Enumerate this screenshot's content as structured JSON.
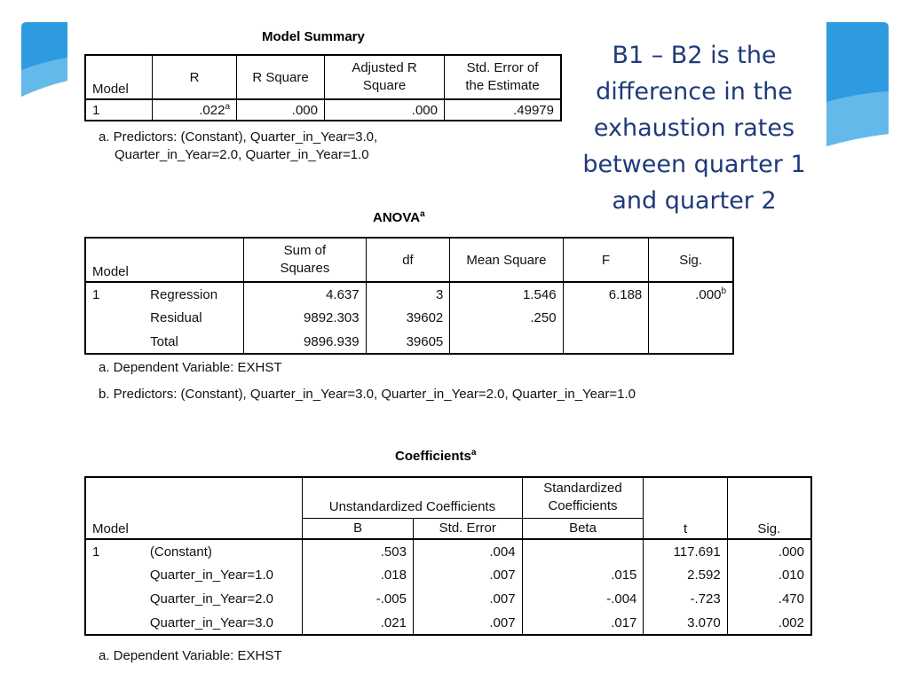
{
  "callout": {
    "lines": [
      "B1 – B2 is the",
      "difference in the",
      "exhaustion rates",
      "between quarter 1",
      "and quarter 2"
    ],
    "color": "#1f3a7a"
  },
  "accent_color": "#2e9be0",
  "model_summary": {
    "title": "Model Summary",
    "headers": {
      "model": "Model",
      "r": "R",
      "r_square": "R Square",
      "adj_r_square": [
        "Adjusted R",
        "Square"
      ],
      "std_error": [
        "Std. Error of",
        "the Estimate"
      ]
    },
    "row": {
      "model": "1",
      "r": ".022",
      "r_sup": "a",
      "r_square": ".000",
      "adj_r_square": ".000",
      "std_error": ".49979"
    },
    "footnote": [
      "a. Predictors: (Constant), Quarter_in_Year=3.0,",
      "Quarter_in_Year=2.0, Quarter_in_Year=1.0"
    ]
  },
  "anova": {
    "title": "ANOVA",
    "title_sup": "a",
    "headers": {
      "model": "Model",
      "ss": [
        "Sum of",
        "Squares"
      ],
      "df": "df",
      "ms": "Mean Square",
      "f": "F",
      "sig": "Sig."
    },
    "model_num": "1",
    "rows": [
      {
        "label": "Regression",
        "ss": "4.637",
        "df": "3",
        "ms": "1.546",
        "f": "6.188",
        "sig": ".000",
        "sig_sup": "b"
      },
      {
        "label": "Residual",
        "ss": "9892.303",
        "df": "39602",
        "ms": ".250",
        "f": "",
        "sig": ""
      },
      {
        "label": "Total",
        "ss": "9896.939",
        "df": "39605",
        "ms": "",
        "f": "",
        "sig": ""
      }
    ],
    "footnotes": [
      "a. Dependent Variable: EXHST",
      "b. Predictors: (Constant), Quarter_in_Year=3.0, Quarter_in_Year=2.0, Quarter_in_Year=1.0"
    ]
  },
  "coefficients": {
    "title": "Coefficients",
    "title_sup": "a",
    "headers": {
      "model": "Model",
      "unstd": "Unstandardized Coefficients",
      "std": [
        "Standardized",
        "Coefficients"
      ],
      "b": "B",
      "se": "Std. Error",
      "beta": "Beta",
      "t": "t",
      "sig": "Sig."
    },
    "model_num": "1",
    "rows": [
      {
        "label": "(Constant)",
        "b": ".503",
        "se": ".004",
        "beta": "",
        "t": "117.691",
        "sig": ".000"
      },
      {
        "label": "Quarter_in_Year=1.0",
        "b": ".018",
        "se": ".007",
        "beta": ".015",
        "t": "2.592",
        "sig": ".010"
      },
      {
        "label": "Quarter_in_Year=2.0",
        "b": "-.005",
        "se": ".007",
        "beta": "-.004",
        "t": "-.723",
        "sig": ".470"
      },
      {
        "label": "Quarter_in_Year=3.0",
        "b": ".021",
        "se": ".007",
        "beta": ".017",
        "t": "3.070",
        "sig": ".002"
      }
    ],
    "footnote": "a. Dependent Variable: EXHST"
  }
}
